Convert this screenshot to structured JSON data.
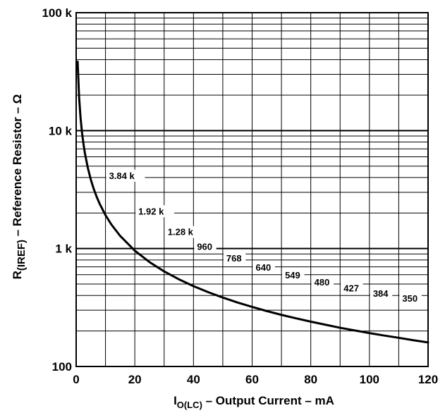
{
  "chart_data": {
    "type": "line",
    "x_scale": "linear",
    "y_scale": "log",
    "xlim": [
      0,
      120
    ],
    "ylim": [
      100,
      100000
    ],
    "grid": true,
    "x_ticks": [
      {
        "value": 0,
        "label": "0"
      },
      {
        "value": 20,
        "label": "20"
      },
      {
        "value": 40,
        "label": "40"
      },
      {
        "value": 60,
        "label": "60"
      },
      {
        "value": 80,
        "label": "80"
      },
      {
        "value": 100,
        "label": "100"
      },
      {
        "value": 120,
        "label": "120"
      }
    ],
    "y_ticks": [
      {
        "value": 100,
        "label": "100"
      },
      {
        "value": 1000,
        "label": "1 k"
      },
      {
        "value": 10000,
        "label": "10 k"
      },
      {
        "value": 100000,
        "label": "100 k"
      }
    ],
    "xlabel": {
      "main": "I",
      "sub": "O(LC)",
      "rest": " – Output Current – mA"
    },
    "ylabel": {
      "main": "R",
      "sub": "(IREF)",
      "rest": " – Reference Resistor – Ω"
    },
    "series": [
      {
        "x": [
          0.5,
          1,
          1.5,
          2,
          2.5,
          3,
          4,
          5,
          6,
          7,
          8,
          10,
          12,
          15,
          20,
          25,
          30,
          35,
          40,
          45,
          50,
          55,
          60,
          65,
          70,
          75,
          80,
          85,
          90,
          95,
          100,
          105,
          110,
          115,
          120
        ],
        "y": [
          38400,
          19200,
          12800,
          9600,
          7680,
          6400,
          4800,
          3840,
          3200,
          2743,
          2400,
          1920,
          1600,
          1280,
          960,
          768,
          640,
          549,
          480,
          427,
          384,
          349,
          320,
          295,
          274,
          256,
          240,
          226,
          213,
          202,
          192,
          183,
          175,
          167,
          160
        ]
      }
    ],
    "annotations": [
      {
        "label": "3.84 k",
        "x": 10,
        "y": 3840
      },
      {
        "label": "1.92 k",
        "x": 20,
        "y": 1920
      },
      {
        "label": "1.28 k",
        "x": 30,
        "y": 1280
      },
      {
        "label": "960",
        "x": 40,
        "y": 960
      },
      {
        "label": "768",
        "x": 50,
        "y": 768
      },
      {
        "label": "640",
        "x": 60,
        "y": 640
      },
      {
        "label": "549",
        "x": 70,
        "y": 549
      },
      {
        "label": "480",
        "x": 80,
        "y": 480
      },
      {
        "label": "427",
        "x": 90,
        "y": 427
      },
      {
        "label": "384",
        "x": 100,
        "y": 384
      },
      {
        "label": "350",
        "x": 110,
        "y": 350
      }
    ]
  }
}
